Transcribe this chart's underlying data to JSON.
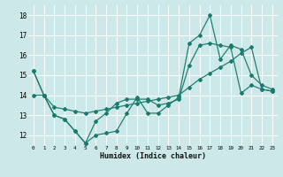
{
  "xlabel": "Humidex (Indice chaleur)",
  "ylabel": "",
  "xlim": [
    -0.5,
    23.5
  ],
  "ylim": [
    11.5,
    18.5
  ],
  "yticks": [
    12,
    13,
    14,
    15,
    16,
    17,
    18
  ],
  "xticks": [
    0,
    1,
    2,
    3,
    4,
    5,
    6,
    7,
    8,
    9,
    10,
    11,
    12,
    13,
    14,
    15,
    16,
    17,
    18,
    19,
    20,
    21,
    22,
    23
  ],
  "bg_color": "#cce8e8",
  "grid_color": "#ffffff",
  "line_color": "#1a7a6e",
  "lines": [
    [
      15.2,
      14.0,
      13.0,
      12.8,
      12.2,
      11.6,
      12.0,
      12.1,
      12.2,
      13.1,
      13.9,
      13.1,
      13.1,
      13.5,
      13.9,
      16.6,
      17.0,
      18.0,
      15.8,
      16.5,
      16.3,
      15.0,
      14.5,
      14.3
    ],
    [
      14.0,
      14.0,
      13.4,
      13.3,
      13.2,
      13.1,
      13.2,
      13.3,
      13.4,
      13.5,
      13.6,
      13.7,
      13.8,
      13.9,
      14.0,
      14.4,
      14.8,
      15.1,
      15.4,
      15.7,
      16.1,
      16.4,
      14.3,
      14.2
    ],
    [
      15.2,
      14.0,
      13.0,
      12.8,
      12.2,
      11.6,
      12.7,
      13.1,
      13.6,
      13.8,
      13.8,
      13.8,
      13.5,
      13.6,
      13.8,
      15.5,
      16.5,
      16.6,
      16.5,
      16.4,
      14.1,
      14.5,
      14.3,
      14.2
    ]
  ]
}
